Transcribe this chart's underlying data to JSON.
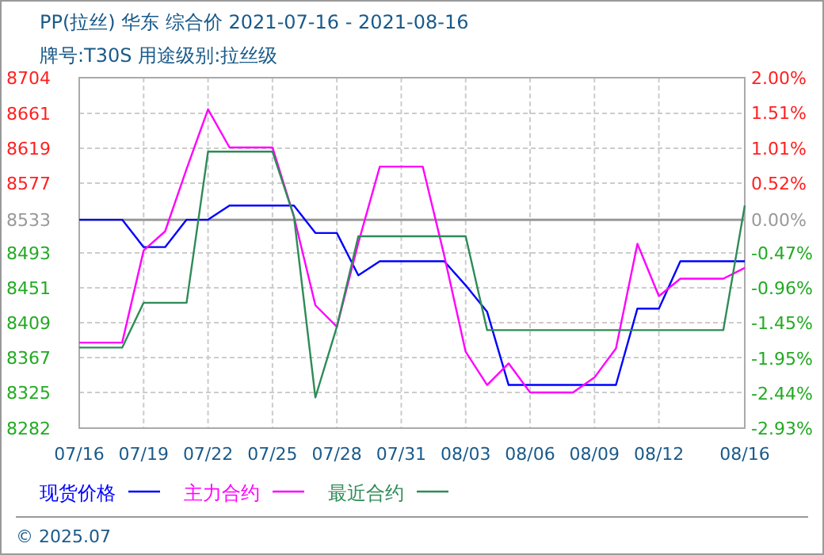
{
  "chart_data": {
    "type": "line",
    "title": "PP(拉丝) 华东 综合价 2021-07-16 - 2021-08-16",
    "subtitle": "牌号:T30S 用途级别:拉丝级",
    "x": [
      "2021-07-16",
      "2021-07-17",
      "2021-07-18",
      "2021-07-19",
      "2021-07-20",
      "2021-07-21",
      "2021-07-22",
      "2021-07-23",
      "2021-07-24",
      "2021-07-25",
      "2021-07-26",
      "2021-07-27",
      "2021-07-28",
      "2021-07-29",
      "2021-07-30",
      "2021-07-31",
      "2021-08-01",
      "2021-08-02",
      "2021-08-03",
      "2021-08-04",
      "2021-08-05",
      "2021-08-06",
      "2021-08-07",
      "2021-08-08",
      "2021-08-09",
      "2021-08-10",
      "2021-08-11",
      "2021-08-12",
      "2021-08-13",
      "2021-08-14",
      "2021-08-15",
      "2021-08-16"
    ],
    "series": [
      {
        "name": "现货价格",
        "color": "#0000ff",
        "values": [
          8533,
          8533,
          8533,
          8500,
          8500,
          8533,
          8533,
          8550,
          8550,
          8550,
          8550,
          8517,
          8517,
          8466,
          8483,
          8483,
          8483,
          8483,
          8454,
          8422,
          8334,
          8334,
          8334,
          8334,
          8334,
          8334,
          8426,
          8426,
          8483,
          8483,
          8483,
          8483
        ]
      },
      {
        "name": "主力合约",
        "color": "#ff00ff",
        "values": [
          8385,
          8385,
          8385,
          8496,
          8519,
          8594,
          8666,
          8620,
          8620,
          8620,
          8537,
          8430,
          8404,
          8505,
          8597,
          8597,
          8597,
          8490,
          8374,
          8334,
          8360,
          8325,
          8325,
          8325,
          8343,
          8378,
          8504,
          8441,
          8462,
          8462,
          8462,
          8475
        ]
      },
      {
        "name": "最近合约",
        "color": "#2e8b57",
        "values": [
          8379,
          8379,
          8379,
          8433,
          8433,
          8433,
          8615,
          8615,
          8615,
          8615,
          8537,
          8319,
          8404,
          8513,
          8513,
          8513,
          8513,
          8513,
          8513,
          8400,
          8400,
          8400,
          8400,
          8400,
          8400,
          8400,
          8400,
          8400,
          8400,
          8400,
          8400,
          8550
        ]
      }
    ],
    "xlim": [
      "2021-07-16",
      "2021-08-16"
    ],
    "xticks": [
      {
        "value": "2021-07-16",
        "label": "07/16"
      },
      {
        "value": "2021-07-19",
        "label": "07/19"
      },
      {
        "value": "2021-07-22",
        "label": "07/22"
      },
      {
        "value": "2021-07-25",
        "label": "07/25"
      },
      {
        "value": "2021-07-28",
        "label": "07/28"
      },
      {
        "value": "2021-07-31",
        "label": "07/31"
      },
      {
        "value": "2021-08-03",
        "label": "08/03"
      },
      {
        "value": "2021-08-06",
        "label": "08/06"
      },
      {
        "value": "2021-08-09",
        "label": "08/09"
      },
      {
        "value": "2021-08-12",
        "label": "08/12"
      },
      {
        "value": "2021-08-16",
        "label": "08/16"
      }
    ],
    "ylim": [
      8282,
      8704
    ],
    "yticks": [
      8282,
      8325,
      8367,
      8409,
      8451,
      8493,
      8533,
      8577,
      8619,
      8661,
      8704
    ],
    "y2lim": [
      -2.93,
      2.0
    ],
    "y2ticks": [
      {
        "value": -2.93,
        "label": "-2.93%"
      },
      {
        "value": -2.44,
        "label": "-2.44%"
      },
      {
        "value": -1.95,
        "label": "-1.95%"
      },
      {
        "value": -1.45,
        "label": "-1.45%"
      },
      {
        "value": -0.96,
        "label": "-0.96%"
      },
      {
        "value": -0.47,
        "label": "-0.47%"
      },
      {
        "value": 0,
        "label": "0.00%"
      },
      {
        "value": 0.52,
        "label": "0.52%"
      },
      {
        "value": 1.01,
        "label": "1.01%"
      },
      {
        "value": 1.51,
        "label": "1.51%"
      },
      {
        "value": 2.0,
        "label": "2.00%"
      }
    ],
    "ref_lines": [
      {
        "axis": "y2",
        "value": 0,
        "color": "#999999"
      }
    ],
    "grid": true,
    "legend": "bottom",
    "marker": "none",
    "line_style": "solid",
    "annotations": [
      "© 2025.07"
    ]
  }
}
